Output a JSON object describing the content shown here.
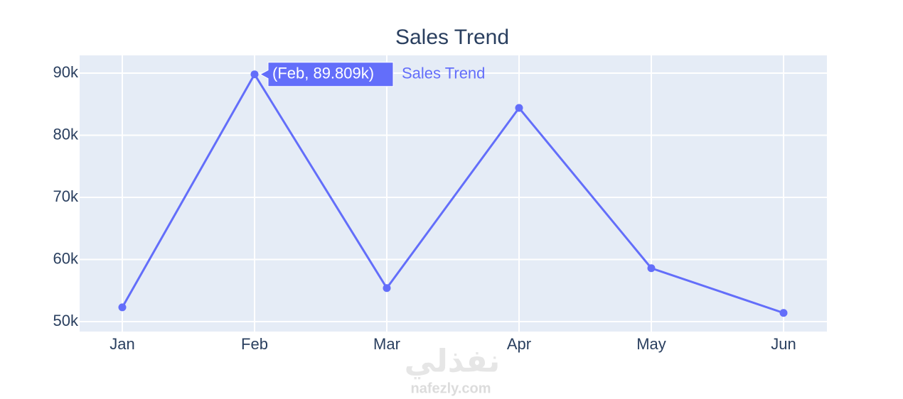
{
  "chart_data": {
    "type": "line",
    "title": "Sales Trend",
    "categories": [
      "Jan",
      "Feb",
      "Mar",
      "Apr",
      "May",
      "Jun"
    ],
    "series": [
      {
        "name": "Sales Trend",
        "color": "#636efa",
        "values": [
          52300,
          89809,
          55400,
          84400,
          58600,
          51400
        ],
        "value_labels": [
          null,
          "(Feb, 89.809k)",
          null,
          null,
          null,
          null
        ]
      }
    ],
    "ylim": [
      48400,
      92860
    ],
    "yticks": [
      {
        "value": 50000,
        "label": "50k"
      },
      {
        "value": 60000,
        "label": "60k"
      },
      {
        "value": 70000,
        "label": "70k"
      },
      {
        "value": 80000,
        "label": "80k"
      },
      {
        "value": 90000,
        "label": "90k"
      }
    ],
    "grid": true
  },
  "watermark": {
    "logo": "نفذلي",
    "site": "nafezly.com"
  }
}
